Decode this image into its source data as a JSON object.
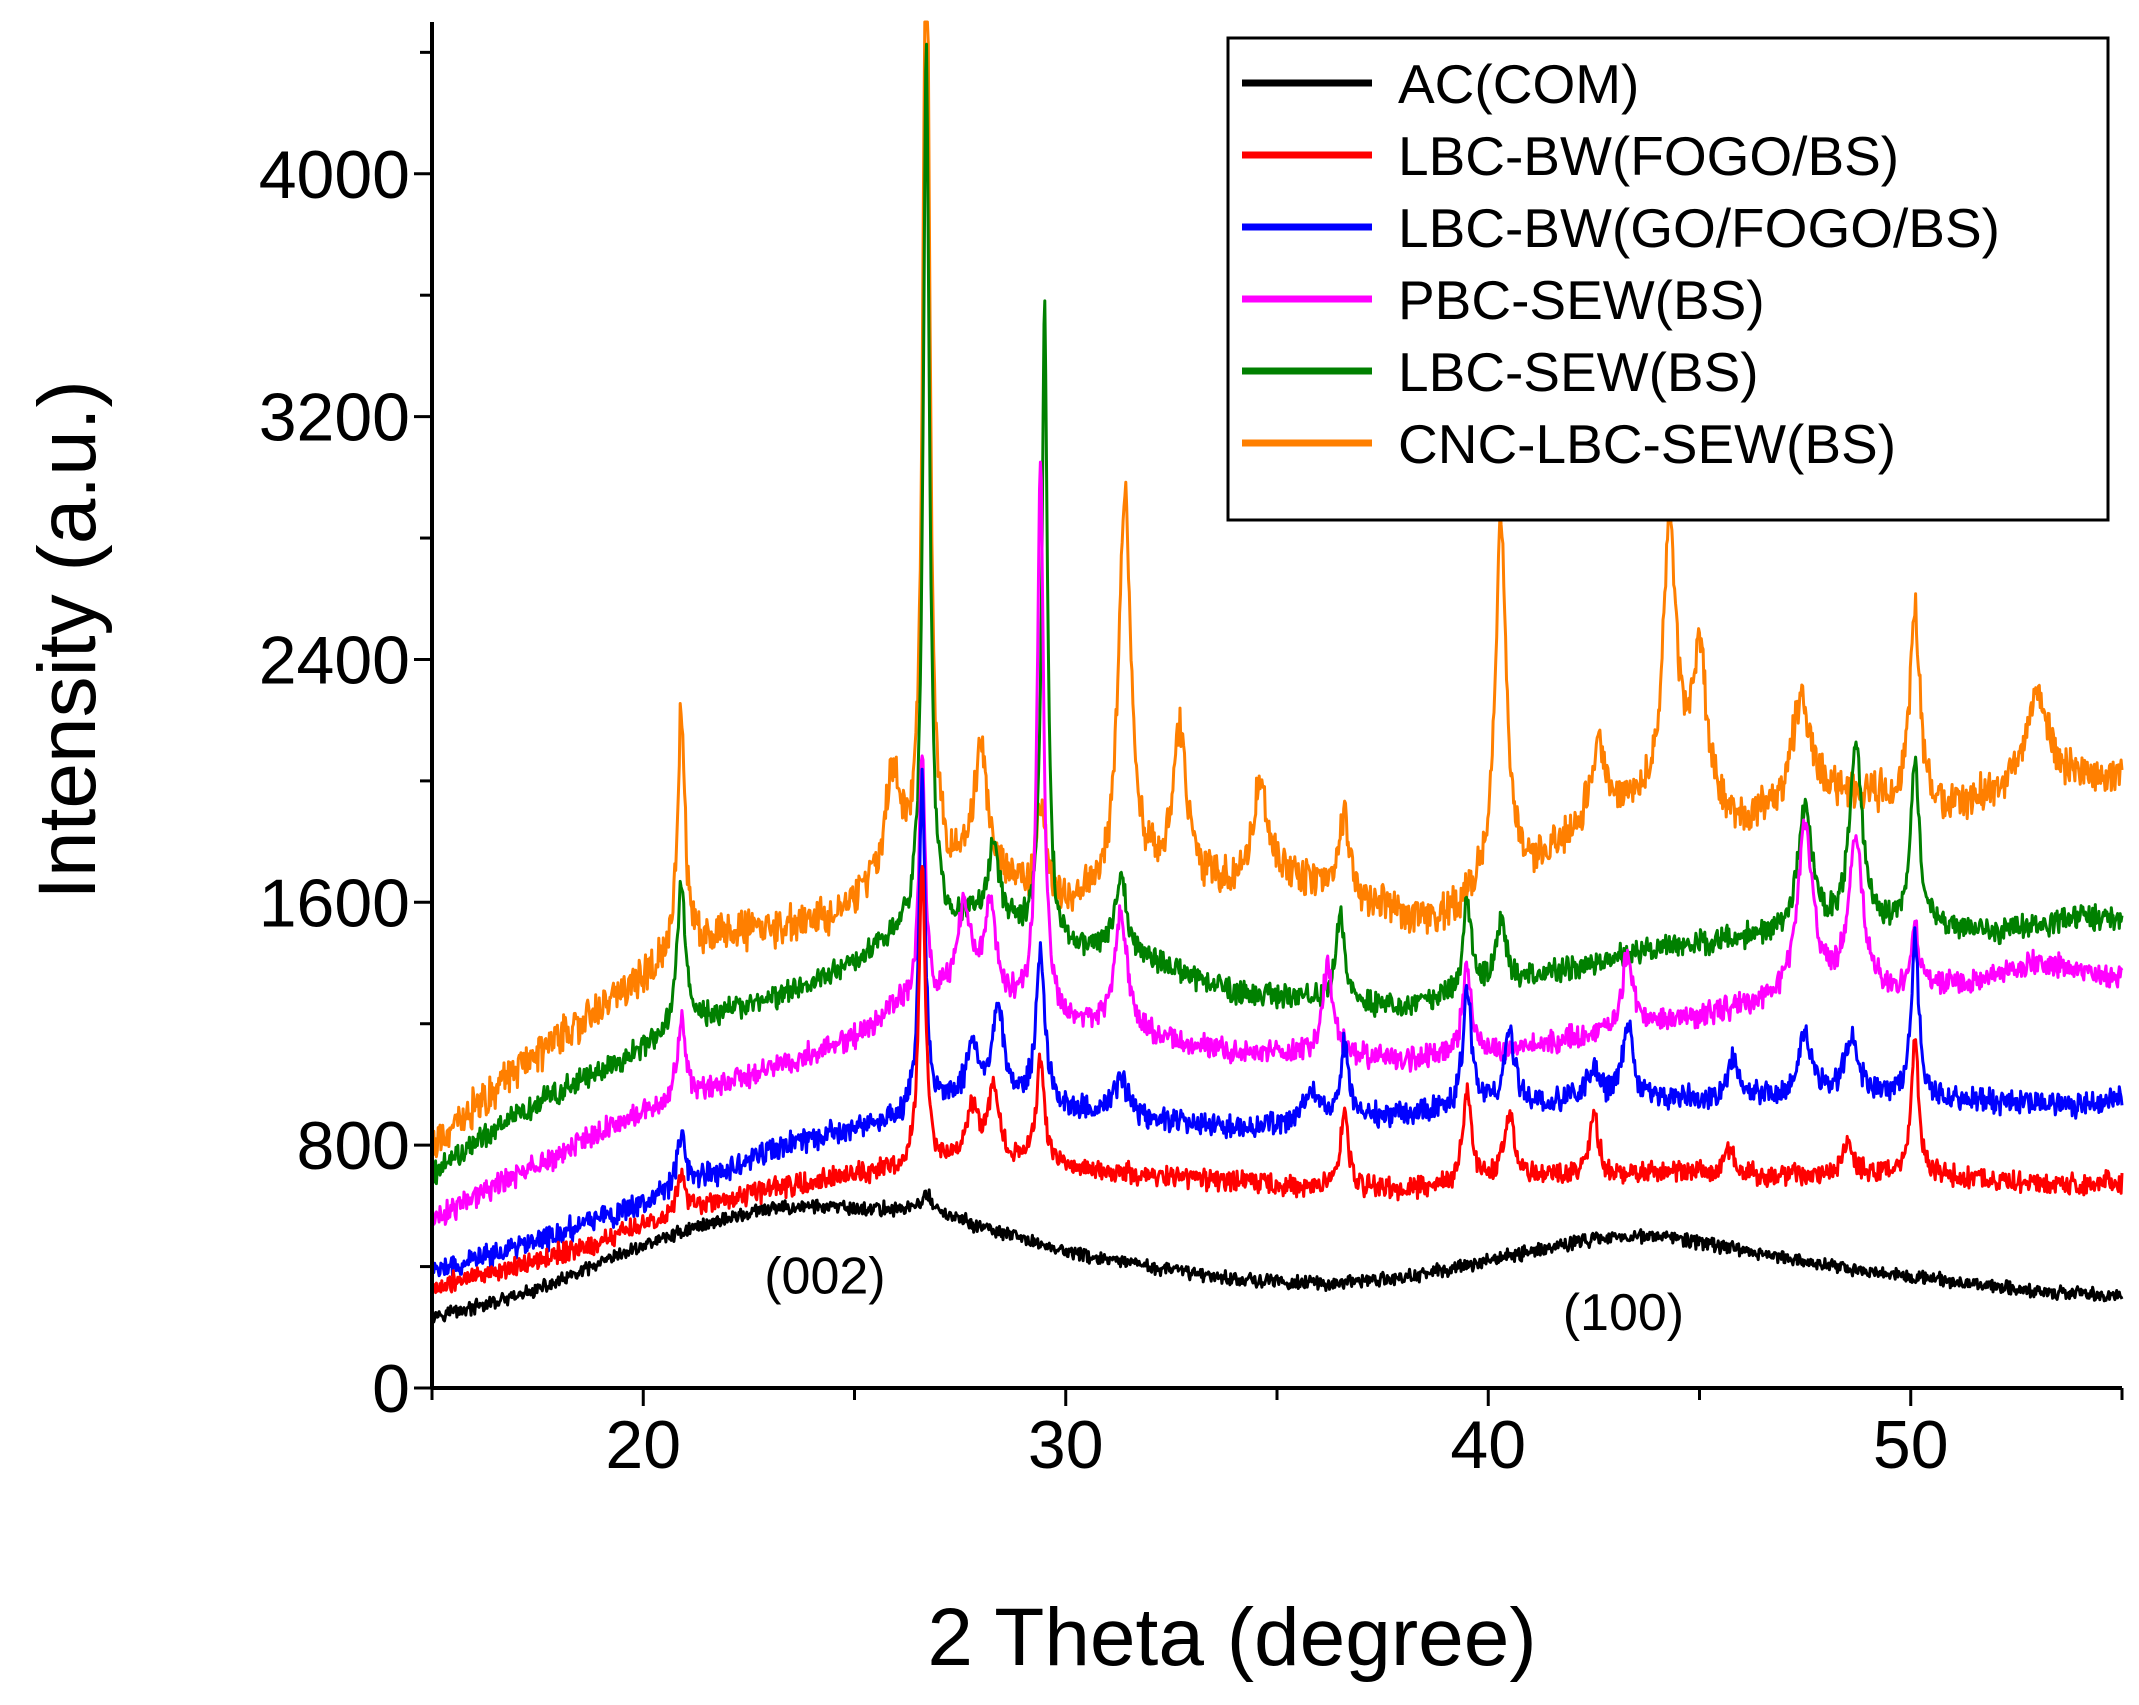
{
  "chart_data": {
    "type": "line",
    "title": "",
    "xlabel": "2 Theta (degree)",
    "ylabel": "Intensity (a.u.)",
    "xlim": [
      15,
      55
    ],
    "ylim": [
      0,
      4500
    ],
    "xticks": [
      20,
      30,
      40,
      50
    ],
    "xtick_labels": [
      "20",
      "30",
      "40",
      "50"
    ],
    "yticks": [
      0,
      800,
      1600,
      2400,
      3200,
      4000
    ],
    "ytick_labels": [
      "0",
      "800",
      "1600",
      "2400",
      "3200",
      "4000"
    ],
    "legend_position": "top-right",
    "annotations": [
      {
        "text": "(002)",
        "x": 24.3,
        "y": 370
      },
      {
        "text": "(100)",
        "x": 43.2,
        "y": 250
      }
    ],
    "series": [
      {
        "name": "AC(COM)",
        "color": "#000000",
        "noise": 18,
        "points": [
          [
            15,
            240
          ],
          [
            16,
            265
          ],
          [
            17,
            300
          ],
          [
            18,
            350
          ],
          [
            19,
            410
          ],
          [
            20,
            470
          ],
          [
            21,
            520
          ],
          [
            22,
            560
          ],
          [
            23,
            590
          ],
          [
            24,
            600
          ],
          [
            25,
            590
          ],
          [
            26,
            590
          ],
          [
            26.5,
            600
          ],
          [
            26.7,
            640
          ],
          [
            27,
            580
          ],
          [
            28,
            530
          ],
          [
            29,
            490
          ],
          [
            30,
            450
          ],
          [
            31,
            420
          ],
          [
            32,
            400
          ],
          [
            33,
            380
          ],
          [
            34,
            360
          ],
          [
            35,
            350
          ],
          [
            36,
            345
          ],
          [
            37,
            350
          ],
          [
            38,
            365
          ],
          [
            39,
            390
          ],
          [
            40,
            420
          ],
          [
            41,
            450
          ],
          [
            42,
            480
          ],
          [
            43,
            500
          ],
          [
            44,
            500
          ],
          [
            45,
            480
          ],
          [
            46,
            455
          ],
          [
            47,
            430
          ],
          [
            48,
            405
          ],
          [
            49,
            385
          ],
          [
            50,
            370
          ],
          [
            51,
            350
          ],
          [
            52,
            335
          ],
          [
            53,
            320
          ],
          [
            54,
            310
          ],
          [
            55,
            300
          ]
        ],
        "peaks": []
      },
      {
        "name": "LBC-BW(FOGO/BS)",
        "color": "#ff0000",
        "noise": 28,
        "points": [
          [
            15,
            330
          ],
          [
            17,
            400
          ],
          [
            19,
            480
          ],
          [
            20,
            540
          ],
          [
            21,
            580
          ],
          [
            22,
            620
          ],
          [
            23,
            650
          ],
          [
            24,
            680
          ],
          [
            25,
            700
          ],
          [
            26,
            720
          ],
          [
            28,
            740
          ],
          [
            30,
            720
          ],
          [
            32,
            700
          ],
          [
            34,
            680
          ],
          [
            36,
            660
          ],
          [
            38,
            650
          ],
          [
            40,
            680
          ],
          [
            42,
            700
          ],
          [
            44,
            710
          ],
          [
            46,
            700
          ],
          [
            48,
            700
          ],
          [
            50,
            710
          ],
          [
            52,
            680
          ],
          [
            54,
            670
          ],
          [
            55,
            680
          ]
        ],
        "peaks": [
          [
            20.9,
            130,
            0.12
          ],
          [
            26.6,
            1000,
            0.09
          ],
          [
            27.8,
            180,
            0.18
          ],
          [
            28.3,
            250,
            0.15
          ],
          [
            29.4,
            350,
            0.12
          ],
          [
            36.6,
            280,
            0.1
          ],
          [
            39.5,
            300,
            0.12
          ],
          [
            40.5,
            200,
            0.15
          ],
          [
            42.5,
            200,
            0.12
          ],
          [
            45.7,
            80,
            0.15
          ],
          [
            48.5,
            100,
            0.15
          ],
          [
            50.1,
            450,
            0.1
          ]
        ]
      },
      {
        "name": "LBC-BW(GO/FOGO/BS)",
        "color": "#0000ff",
        "noise": 32,
        "points": [
          [
            15,
            380
          ],
          [
            17,
            460
          ],
          [
            19,
            560
          ],
          [
            20,
            610
          ],
          [
            21,
            660
          ],
          [
            22,
            720
          ],
          [
            23,
            780
          ],
          [
            24,
            820
          ],
          [
            25,
            850
          ],
          [
            26,
            880
          ],
          [
            28,
            970
          ],
          [
            30,
            920
          ],
          [
            32,
            880
          ],
          [
            34,
            860
          ],
          [
            36,
            870
          ],
          [
            38,
            900
          ],
          [
            40,
            920
          ],
          [
            42,
            940
          ],
          [
            44,
            950
          ],
          [
            46,
            950
          ],
          [
            48,
            950
          ],
          [
            50,
            960
          ],
          [
            52,
            940
          ],
          [
            54,
            930
          ],
          [
            55,
            950
          ]
        ],
        "peaks": [
          [
            20.9,
            180,
            0.12
          ],
          [
            26.6,
            1100,
            0.09
          ],
          [
            27.8,
            150,
            0.18
          ],
          [
            28.4,
            300,
            0.15
          ],
          [
            29.4,
            500,
            0.12
          ],
          [
            31.3,
            120,
            0.2
          ],
          [
            35.8,
            120,
            0.2
          ],
          [
            36.6,
            250,
            0.12
          ],
          [
            39.5,
            400,
            0.12
          ],
          [
            40.5,
            250,
            0.15
          ],
          [
            42.5,
            120,
            0.15
          ],
          [
            43.3,
            250,
            0.15
          ],
          [
            45.8,
            130,
            0.15
          ],
          [
            47.5,
            200,
            0.2
          ],
          [
            48.6,
            200,
            0.2
          ],
          [
            50.1,
            550,
            0.1
          ]
        ]
      },
      {
        "name": "PBC-SEW(BS)",
        "color": "#ff00ff",
        "noise": 32,
        "points": [
          [
            15,
            550
          ],
          [
            17,
            700
          ],
          [
            19,
            840
          ],
          [
            20,
            900
          ],
          [
            21,
            960
          ],
          [
            22,
            1000
          ],
          [
            23,
            1050
          ],
          [
            24,
            1100
          ],
          [
            25,
            1150
          ],
          [
            26,
            1250
          ],
          [
            28,
            1300
          ],
          [
            30,
            1200
          ],
          [
            32,
            1150
          ],
          [
            34,
            1100
          ],
          [
            36,
            1100
          ],
          [
            38,
            1080
          ],
          [
            40,
            1100
          ],
          [
            42,
            1150
          ],
          [
            44,
            1200
          ],
          [
            46,
            1250
          ],
          [
            48,
            1300
          ],
          [
            50,
            1300
          ],
          [
            52,
            1350
          ],
          [
            53,
            1400
          ],
          [
            55,
            1350
          ]
        ],
        "peaks": [
          [
            20.9,
            250,
            0.12
          ],
          [
            26.6,
            800,
            0.09
          ],
          [
            27.6,
            300,
            0.18
          ],
          [
            28.2,
            300,
            0.15
          ],
          [
            29.4,
            1800,
            0.09
          ],
          [
            31.3,
            400,
            0.18
          ],
          [
            36.2,
            300,
            0.15
          ],
          [
            39.5,
            300,
            0.12
          ],
          [
            43.3,
            250,
            0.15
          ],
          [
            47.5,
            550,
            0.22
          ],
          [
            48.7,
            500,
            0.2
          ],
          [
            50.1,
            200,
            0.12
          ]
        ]
      },
      {
        "name": "LBC-SEW(BS)",
        "color": "#008000",
        "noise": 32,
        "points": [
          [
            15,
            700
          ],
          [
            17,
            900
          ],
          [
            19,
            1050
          ],
          [
            20,
            1120
          ],
          [
            21,
            1180
          ],
          [
            22,
            1240
          ],
          [
            23,
            1280
          ],
          [
            24,
            1330
          ],
          [
            25,
            1400
          ],
          [
            26,
            1480
          ],
          [
            28,
            1550
          ],
          [
            30,
            1450
          ],
          [
            32,
            1400
          ],
          [
            34,
            1300
          ],
          [
            36,
            1280
          ],
          [
            38,
            1250
          ],
          [
            40,
            1320
          ],
          [
            42,
            1380
          ],
          [
            44,
            1450
          ],
          [
            46,
            1480
          ],
          [
            48,
            1500
          ],
          [
            50,
            1520
          ],
          [
            52,
            1500
          ],
          [
            54,
            1550
          ],
          [
            55,
            1550
          ]
        ],
        "peaks": [
          [
            20.9,
            500,
            0.12
          ],
          [
            26.7,
            2900,
            0.09
          ],
          [
            28.3,
            250,
            0.15
          ],
          [
            29.5,
            2100,
            0.08
          ],
          [
            31.3,
            250,
            0.18
          ],
          [
            36.5,
            300,
            0.12
          ],
          [
            39.5,
            300,
            0.12
          ],
          [
            40.3,
            200,
            0.15
          ],
          [
            47.5,
            400,
            0.2
          ],
          [
            48.7,
            600,
            0.18
          ],
          [
            50.1,
            550,
            0.12
          ]
        ]
      },
      {
        "name": "CNC-LBC-SEW(BS)",
        "color": "#ff7f00",
        "noise": 50,
        "points": [
          [
            15,
            800
          ],
          [
            17,
            1050
          ],
          [
            19,
            1250
          ],
          [
            20,
            1350
          ],
          [
            21,
            1450
          ],
          [
            22,
            1500
          ],
          [
            23,
            1500
          ],
          [
            24,
            1530
          ],
          [
            25,
            1570
          ],
          [
            26,
            1650
          ],
          [
            28,
            1700
          ],
          [
            29,
            1600
          ],
          [
            30,
            1580
          ],
          [
            32,
            1650
          ],
          [
            34,
            1650
          ],
          [
            35,
            1700
          ],
          [
            36,
            1650
          ],
          [
            37,
            1600
          ],
          [
            38,
            1550
          ],
          [
            39,
            1550
          ],
          [
            40,
            1650
          ],
          [
            41,
            1700
          ],
          [
            42,
            1800
          ],
          [
            43,
            1900
          ],
          [
            44,
            1900
          ],
          [
            45,
            1900
          ],
          [
            46,
            1850
          ],
          [
            47,
            1900
          ],
          [
            48,
            1950
          ],
          [
            49,
            1950
          ],
          [
            50,
            1900
          ],
          [
            51,
            1900
          ],
          [
            52,
            1950
          ],
          [
            53,
            2000
          ],
          [
            54,
            2000
          ],
          [
            55,
            2000
          ]
        ],
        "peaks": [
          [
            20.9,
            800,
            0.1
          ],
          [
            25.9,
            350,
            0.25
          ],
          [
            26.7,
            3500,
            0.09
          ],
          [
            28.0,
            400,
            0.18
          ],
          [
            29.4,
            300,
            0.15
          ],
          [
            31.4,
            1300,
            0.18
          ],
          [
            32.7,
            500,
            0.2
          ],
          [
            34.6,
            300,
            0.2
          ],
          [
            36.6,
            250,
            0.15
          ],
          [
            40.3,
            1200,
            0.15
          ],
          [
            42.6,
            250,
            0.2
          ],
          [
            44.3,
            900,
            0.2
          ],
          [
            45.0,
            500,
            0.2
          ],
          [
            47.4,
            350,
            0.25
          ],
          [
            50.1,
            650,
            0.15
          ],
          [
            53.0,
            300,
            0.3
          ]
        ]
      }
    ]
  }
}
